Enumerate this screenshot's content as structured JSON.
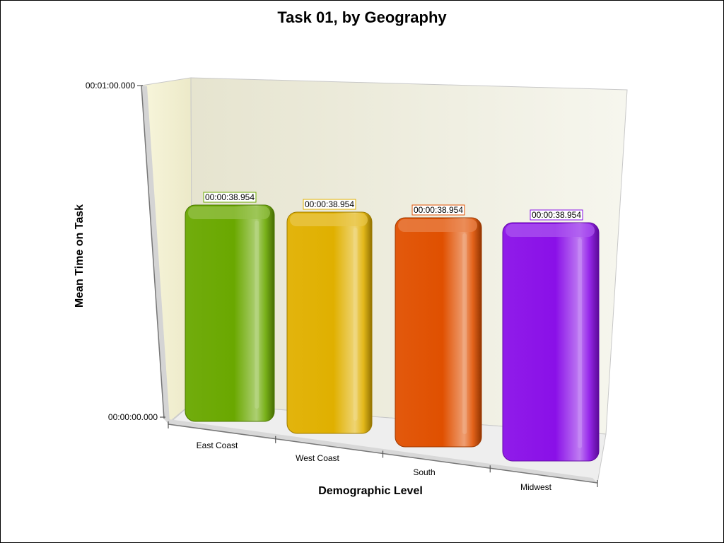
{
  "chart_data": {
    "type": "bar",
    "title": "Task 01, by Geography",
    "xlabel": "Demographic Level",
    "ylabel": "Mean Time on Task",
    "categories": [
      "East Coast",
      "West Coast",
      "South",
      "Midwest"
    ],
    "values": [
      38.954,
      38.954,
      38.954,
      38.954
    ],
    "value_labels": [
      "00:00:38.954",
      "00:00:38.954",
      "00:00:38.954",
      "00:00:38.954"
    ],
    "colors": [
      "#6aa800",
      "#e0b000",
      "#e05000",
      "#8a10e8"
    ],
    "ylim": [
      0,
      60
    ],
    "y_ticks": [
      {
        "value": 0,
        "label": "00:00:00.000"
      },
      {
        "value": 60,
        "label": "00:01:00.000"
      }
    ],
    "grid": false,
    "legend": "none",
    "style": "3d"
  }
}
